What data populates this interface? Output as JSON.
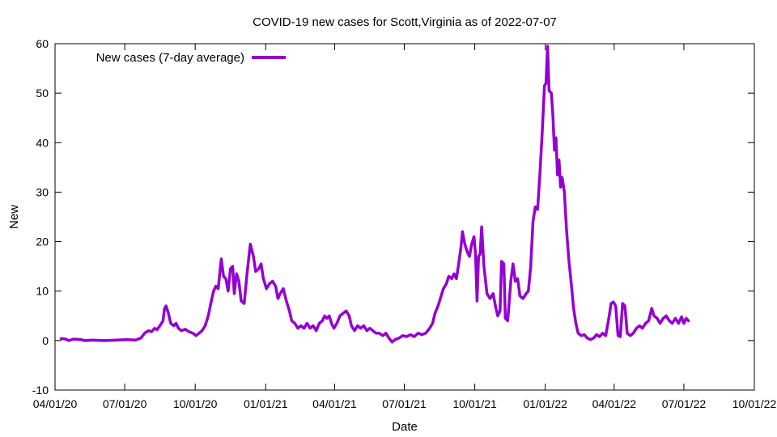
{
  "chart_data": {
    "type": "line",
    "title": "COVID-19 new cases for Scott,Virginia as of 2022-07-07",
    "xlabel": "Date",
    "ylabel": "New",
    "ylim": [
      -10,
      60
    ],
    "yticks": [
      -10,
      0,
      10,
      20,
      30,
      40,
      50,
      60
    ],
    "xlim": [
      "2020-04-01",
      "2022-10-01"
    ],
    "xticks": [
      {
        "date": "2020-04-01",
        "label": "04/01/20"
      },
      {
        "date": "2020-07-01",
        "label": "07/01/20"
      },
      {
        "date": "2020-10-01",
        "label": "10/01/20"
      },
      {
        "date": "2021-01-01",
        "label": "01/01/21"
      },
      {
        "date": "2021-04-01",
        "label": "04/01/21"
      },
      {
        "date": "2021-07-01",
        "label": "07/01/21"
      },
      {
        "date": "2021-10-01",
        "label": "10/01/21"
      },
      {
        "date": "2022-01-01",
        "label": "01/01/22"
      },
      {
        "date": "2022-04-01",
        "label": "04/01/22"
      },
      {
        "date": "2022-07-01",
        "label": "07/01/22"
      },
      {
        "date": "2022-10-01",
        "label": "10/01/22"
      }
    ],
    "grid": false,
    "legend_position": "top-left",
    "series": [
      {
        "name": "New cases (7-day average)",
        "color": "#9400d3",
        "points": [
          [
            "2020-04-09",
            0.4
          ],
          [
            "2020-04-15",
            0.3
          ],
          [
            "2020-04-19",
            0.0
          ],
          [
            "2020-04-25",
            0.3
          ],
          [
            "2020-05-05",
            0.2
          ],
          [
            "2020-05-10",
            0.0
          ],
          [
            "2020-05-20",
            0.1
          ],
          [
            "2020-06-05",
            0.0
          ],
          [
            "2020-06-20",
            0.1
          ],
          [
            "2020-07-05",
            0.2
          ],
          [
            "2020-07-15",
            0.1
          ],
          [
            "2020-07-22",
            0.5
          ],
          [
            "2020-07-27",
            1.5
          ],
          [
            "2020-08-01",
            2.0
          ],
          [
            "2020-08-05",
            1.8
          ],
          [
            "2020-08-09",
            2.5
          ],
          [
            "2020-08-12",
            2.2
          ],
          [
            "2020-08-16",
            3.0
          ],
          [
            "2020-08-20",
            4.0
          ],
          [
            "2020-08-22",
            6.5
          ],
          [
            "2020-08-24",
            7.0
          ],
          [
            "2020-08-27",
            5.5
          ],
          [
            "2020-08-30",
            3.5
          ],
          [
            "2020-09-03",
            3.0
          ],
          [
            "2020-09-06",
            3.5
          ],
          [
            "2020-09-09",
            2.5
          ],
          [
            "2020-09-13",
            2.0
          ],
          [
            "2020-09-18",
            2.3
          ],
          [
            "2020-09-23",
            1.8
          ],
          [
            "2020-09-28",
            1.5
          ],
          [
            "2020-10-02",
            1.0
          ],
          [
            "2020-10-06",
            1.5
          ],
          [
            "2020-10-10",
            2.0
          ],
          [
            "2020-10-14",
            3.0
          ],
          [
            "2020-10-18",
            5.0
          ],
          [
            "2020-10-22",
            8.0
          ],
          [
            "2020-10-25",
            10.0
          ],
          [
            "2020-10-28",
            11.0
          ],
          [
            "2020-10-31",
            10.5
          ],
          [
            "2020-11-02",
            13.5
          ],
          [
            "2020-11-04",
            16.5
          ],
          [
            "2020-11-07",
            13.0
          ],
          [
            "2020-11-10",
            12.5
          ],
          [
            "2020-11-13",
            10.0
          ],
          [
            "2020-11-16",
            14.5
          ],
          [
            "2020-11-19",
            15.0
          ],
          [
            "2020-11-21",
            9.5
          ],
          [
            "2020-11-24",
            13.5
          ],
          [
            "2020-11-27",
            12.0
          ],
          [
            "2020-11-30",
            8.0
          ],
          [
            "2020-12-04",
            7.5
          ],
          [
            "2020-12-08",
            14.0
          ],
          [
            "2020-12-12",
            19.5
          ],
          [
            "2020-12-16",
            17.0
          ],
          [
            "2020-12-19",
            14.0
          ],
          [
            "2020-12-23",
            14.5
          ],
          [
            "2020-12-26",
            15.5
          ],
          [
            "2020-12-29",
            12.5
          ],
          [
            "2021-01-02",
            10.5
          ],
          [
            "2021-01-06",
            11.5
          ],
          [
            "2021-01-10",
            12.0
          ],
          [
            "2021-01-14",
            11.0
          ],
          [
            "2021-01-17",
            8.5
          ],
          [
            "2021-01-20",
            9.5
          ],
          [
            "2021-01-24",
            10.5
          ],
          [
            "2021-01-28",
            8.0
          ],
          [
            "2021-02-01",
            6.0
          ],
          [
            "2021-02-04",
            4.0
          ],
          [
            "2021-02-08",
            3.5
          ],
          [
            "2021-02-12",
            2.5
          ],
          [
            "2021-02-16",
            3.0
          ],
          [
            "2021-02-20",
            2.5
          ],
          [
            "2021-02-24",
            3.5
          ],
          [
            "2021-02-28",
            2.5
          ],
          [
            "2021-03-04",
            3.0
          ],
          [
            "2021-03-08",
            2.0
          ],
          [
            "2021-03-12",
            3.5
          ],
          [
            "2021-03-16",
            4.0
          ],
          [
            "2021-03-19",
            5.0
          ],
          [
            "2021-03-22",
            4.5
          ],
          [
            "2021-03-25",
            5.0
          ],
          [
            "2021-03-28",
            3.5
          ],
          [
            "2021-03-31",
            2.5
          ],
          [
            "2021-04-04",
            3.5
          ],
          [
            "2021-04-08",
            5.0
          ],
          [
            "2021-04-12",
            5.5
          ],
          [
            "2021-04-16",
            6.0
          ],
          [
            "2021-04-20",
            5.0
          ],
          [
            "2021-04-23",
            3.0
          ],
          [
            "2021-04-27",
            2.0
          ],
          [
            "2021-05-01",
            3.0
          ],
          [
            "2021-05-05",
            2.5
          ],
          [
            "2021-05-09",
            3.0
          ],
          [
            "2021-05-13",
            2.0
          ],
          [
            "2021-05-17",
            2.5
          ],
          [
            "2021-05-21",
            2.0
          ],
          [
            "2021-05-25",
            1.5
          ],
          [
            "2021-05-29",
            1.5
          ],
          [
            "2021-06-03",
            1.0
          ],
          [
            "2021-06-07",
            1.5
          ],
          [
            "2021-06-11",
            0.5
          ],
          [
            "2021-06-15",
            -0.3
          ],
          [
            "2021-06-19",
            0.2
          ],
          [
            "2021-06-24",
            0.5
          ],
          [
            "2021-06-29",
            1.0
          ],
          [
            "2021-07-04",
            0.8
          ],
          [
            "2021-07-09",
            1.2
          ],
          [
            "2021-07-14",
            0.8
          ],
          [
            "2021-07-19",
            1.5
          ],
          [
            "2021-07-24",
            1.2
          ],
          [
            "2021-07-29",
            1.5
          ],
          [
            "2021-08-03",
            2.5
          ],
          [
            "2021-08-07",
            3.5
          ],
          [
            "2021-08-10",
            5.5
          ],
          [
            "2021-08-14",
            7.0
          ],
          [
            "2021-08-18",
            9.0
          ],
          [
            "2021-08-21",
            10.5
          ],
          [
            "2021-08-25",
            11.5
          ],
          [
            "2021-08-28",
            13.0
          ],
          [
            "2021-09-01",
            12.5
          ],
          [
            "2021-09-04",
            13.5
          ],
          [
            "2021-09-07",
            12.5
          ],
          [
            "2021-09-10",
            15.5
          ],
          [
            "2021-09-13",
            19.0
          ],
          [
            "2021-09-15",
            22.0
          ],
          [
            "2021-09-18",
            19.5
          ],
          [
            "2021-09-21",
            18.0
          ],
          [
            "2021-09-24",
            17.0
          ],
          [
            "2021-09-27",
            19.5
          ],
          [
            "2021-09-30",
            21.0
          ],
          [
            "2021-10-02",
            17.5
          ],
          [
            "2021-10-04",
            8.0
          ],
          [
            "2021-10-06",
            17.0
          ],
          [
            "2021-10-08",
            17.5
          ],
          [
            "2021-10-10",
            23.0
          ],
          [
            "2021-10-13",
            15.0
          ],
          [
            "2021-10-17",
            9.5
          ],
          [
            "2021-10-21",
            8.5
          ],
          [
            "2021-10-25",
            9.5
          ],
          [
            "2021-10-28",
            7.0
          ],
          [
            "2021-10-31",
            5.0
          ],
          [
            "2021-11-03",
            6.0
          ],
          [
            "2021-11-05",
            16.0
          ],
          [
            "2021-11-08",
            15.5
          ],
          [
            "2021-11-10",
            4.5
          ],
          [
            "2021-11-13",
            4.0
          ],
          [
            "2021-11-17",
            12.0
          ],
          [
            "2021-11-20",
            15.5
          ],
          [
            "2021-11-23",
            12.0
          ],
          [
            "2021-11-26",
            12.5
          ],
          [
            "2021-11-29",
            9.0
          ],
          [
            "2021-12-03",
            8.5
          ],
          [
            "2021-12-07",
            9.5
          ],
          [
            "2021-12-10",
            10.0
          ],
          [
            "2021-12-13",
            15.0
          ],
          [
            "2021-12-16",
            24.0
          ],
          [
            "2021-12-19",
            27.0
          ],
          [
            "2021-12-22",
            26.5
          ],
          [
            "2021-12-25",
            33.5
          ],
          [
            "2021-12-28",
            42.0
          ],
          [
            "2021-12-31",
            51.5
          ],
          [
            "2022-01-02",
            52.0
          ],
          [
            "2022-01-04",
            59.5
          ],
          [
            "2022-01-06",
            50.5
          ],
          [
            "2022-01-09",
            50.0
          ],
          [
            "2022-01-11",
            45.5
          ],
          [
            "2022-01-13",
            38.5
          ],
          [
            "2022-01-15",
            41.0
          ],
          [
            "2022-01-17",
            33.5
          ],
          [
            "2022-01-19",
            36.5
          ],
          [
            "2022-01-21",
            31.0
          ],
          [
            "2022-01-23",
            33.0
          ],
          [
            "2022-01-26",
            30.0
          ],
          [
            "2022-01-29",
            22.0
          ],
          [
            "2022-02-01",
            16.0
          ],
          [
            "2022-02-04",
            11.5
          ],
          [
            "2022-02-07",
            6.5
          ],
          [
            "2022-02-10",
            3.5
          ],
          [
            "2022-02-13",
            1.5
          ],
          [
            "2022-02-17",
            1.0
          ],
          [
            "2022-02-21",
            1.2
          ],
          [
            "2022-02-25",
            0.5
          ],
          [
            "2022-03-01",
            0.2
          ],
          [
            "2022-03-05",
            0.5
          ],
          [
            "2022-03-09",
            1.2
          ],
          [
            "2022-03-13",
            0.8
          ],
          [
            "2022-03-17",
            1.5
          ],
          [
            "2022-03-21",
            1.0
          ],
          [
            "2022-03-25",
            4.5
          ],
          [
            "2022-03-28",
            7.5
          ],
          [
            "2022-03-31",
            7.8
          ],
          [
            "2022-04-03",
            7.0
          ],
          [
            "2022-04-06",
            1.0
          ],
          [
            "2022-04-09",
            0.8
          ],
          [
            "2022-04-12",
            7.5
          ],
          [
            "2022-04-15",
            7.0
          ],
          [
            "2022-04-18",
            1.5
          ],
          [
            "2022-04-22",
            1.0
          ],
          [
            "2022-04-26",
            1.5
          ],
          [
            "2022-04-30",
            2.5
          ],
          [
            "2022-05-04",
            3.0
          ],
          [
            "2022-05-08",
            2.5
          ],
          [
            "2022-05-12",
            3.5
          ],
          [
            "2022-05-16",
            4.0
          ],
          [
            "2022-05-20",
            6.5
          ],
          [
            "2022-05-23",
            5.0
          ],
          [
            "2022-05-27",
            4.5
          ],
          [
            "2022-05-31",
            3.5
          ],
          [
            "2022-06-04",
            4.5
          ],
          [
            "2022-06-08",
            5.0
          ],
          [
            "2022-06-12",
            4.0
          ],
          [
            "2022-06-16",
            3.5
          ],
          [
            "2022-06-20",
            4.5
          ],
          [
            "2022-06-24",
            3.5
          ],
          [
            "2022-06-28",
            4.8
          ],
          [
            "2022-07-01",
            3.5
          ],
          [
            "2022-07-04",
            4.5
          ],
          [
            "2022-07-07",
            4.0
          ]
        ]
      }
    ]
  }
}
